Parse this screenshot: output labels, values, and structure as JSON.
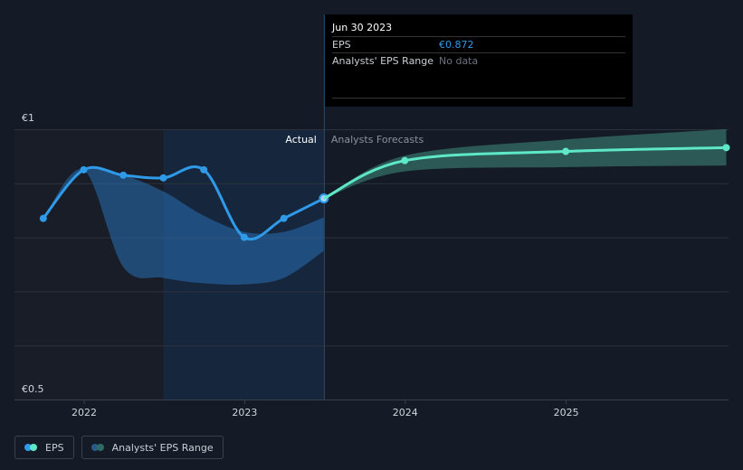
{
  "chart_data": {
    "type": "line",
    "ylim": [
      0.5,
      1.0
    ],
    "y_ticks": [
      "€1",
      "€0.5"
    ],
    "x_ticks": [
      "2022",
      "2023",
      "2024",
      "2025"
    ],
    "grid": true,
    "sections": {
      "actual_label": "Actual",
      "forecast_label": "Analysts Forecasts"
    },
    "series": [
      {
        "name": "EPS",
        "color": "#2f9ae8",
        "values": [
          {
            "x": "2021-09-30",
            "y": 0.835
          },
          {
            "x": "2021-12-31",
            "y": 0.925
          },
          {
            "x": "2022-03-31",
            "y": 0.915
          },
          {
            "x": "2022-06-30",
            "y": 0.91
          },
          {
            "x": "2022-09-30",
            "y": 0.925
          },
          {
            "x": "2022-12-31",
            "y": 0.8
          },
          {
            "x": "2023-03-31",
            "y": 0.835
          },
          {
            "x": "2023-06-30",
            "y": 0.872
          }
        ]
      },
      {
        "name": "EPS forecast",
        "color": "#5ee8c8",
        "values": [
          {
            "x": "2023-06-30",
            "y": 0.872
          },
          {
            "x": "2023-12-31",
            "y": 0.942
          },
          {
            "x": "2024-12-31",
            "y": 0.959
          },
          {
            "x": "2025-12-31",
            "y": 0.966
          }
        ]
      }
    ],
    "actual_range_band": [
      {
        "x": "2021-09-30",
        "low": 0.835,
        "high": 0.835
      },
      {
        "x": "2021-12-31",
        "low": 0.925,
        "high": 0.925
      },
      {
        "x": "2022-03-31",
        "low": 0.745,
        "high": 0.915
      },
      {
        "x": "2022-06-30",
        "low": 0.725,
        "high": 0.885
      },
      {
        "x": "2022-09-30",
        "low": 0.715,
        "high": 0.84
      },
      {
        "x": "2022-12-31",
        "low": 0.713,
        "high": 0.81
      },
      {
        "x": "2023-03-31",
        "low": 0.725,
        "high": 0.81
      },
      {
        "x": "2023-06-30",
        "low": 0.775,
        "high": 0.837
      }
    ],
    "forecast_range_band": [
      {
        "x": "2023-06-30",
        "low": 0.872,
        "high": 0.872
      },
      {
        "x": "2023-12-31",
        "low": 0.922,
        "high": 0.951
      },
      {
        "x": "2024-12-31",
        "low": 0.93,
        "high": 0.981
      },
      {
        "x": "2025-12-31",
        "low": 0.933,
        "high": 1.0
      }
    ]
  },
  "tooltip": {
    "date": "Jun 30 2023",
    "eps_label": "EPS",
    "eps_value": "€0.872",
    "range_label": "Analysts' EPS Range",
    "range_value": "No data"
  },
  "legend": {
    "eps_label": "EPS",
    "range_label": "Analysts' EPS Range",
    "eps_colors": [
      "#2f9ae8",
      "#5ee8c8"
    ],
    "range_colors": [
      "#2a5b86",
      "#2f6b66"
    ]
  }
}
